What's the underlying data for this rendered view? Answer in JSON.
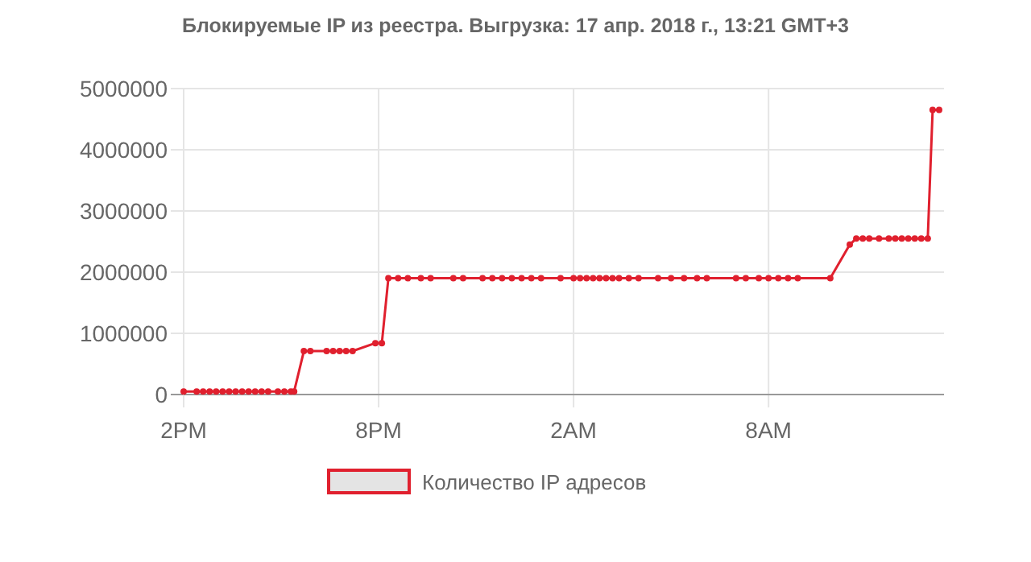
{
  "chart_data": {
    "type": "line",
    "title": "Блокируемые IP из реестра. Выгрузка: 17 апр. 2018 г., 13:21 GMT+3",
    "x": [
      "2018-04-16T14:00",
      "2018-04-16T14:24",
      "2018-04-16T14:36",
      "2018-04-16T14:48",
      "2018-04-16T15:00",
      "2018-04-16T15:12",
      "2018-04-16T15:24",
      "2018-04-16T15:36",
      "2018-04-16T15:48",
      "2018-04-16T16:00",
      "2018-04-16T16:12",
      "2018-04-16T16:24",
      "2018-04-16T16:36",
      "2018-04-16T16:54",
      "2018-04-16T17:06",
      "2018-04-16T17:18",
      "2018-04-16T17:24",
      "2018-04-16T17:42",
      "2018-04-16T17:54",
      "2018-04-16T18:24",
      "2018-04-16T18:36",
      "2018-04-16T18:48",
      "2018-04-16T19:00",
      "2018-04-16T19:12",
      "2018-04-16T19:54",
      "2018-04-16T20:06",
      "2018-04-16T20:18",
      "2018-04-16T20:36",
      "2018-04-16T20:54",
      "2018-04-16T21:18",
      "2018-04-16T21:36",
      "2018-04-16T22:18",
      "2018-04-16T22:36",
      "2018-04-16T23:12",
      "2018-04-16T23:30",
      "2018-04-16T23:48",
      "2018-04-17T00:06",
      "2018-04-17T00:24",
      "2018-04-17T00:42",
      "2018-04-17T01:00",
      "2018-04-17T01:36",
      "2018-04-17T02:00",
      "2018-04-17T02:12",
      "2018-04-17T02:24",
      "2018-04-17T02:36",
      "2018-04-17T02:48",
      "2018-04-17T03:00",
      "2018-04-17T03:12",
      "2018-04-17T03:24",
      "2018-04-17T03:42",
      "2018-04-17T04:00",
      "2018-04-17T04:36",
      "2018-04-17T05:00",
      "2018-04-17T05:24",
      "2018-04-17T05:48",
      "2018-04-17T06:06",
      "2018-04-17T07:00",
      "2018-04-17T07:18",
      "2018-04-17T07:42",
      "2018-04-17T08:00",
      "2018-04-17T08:18",
      "2018-04-17T08:36",
      "2018-04-17T08:54",
      "2018-04-17T09:54",
      "2018-04-17T10:30",
      "2018-04-17T10:42",
      "2018-04-17T10:54",
      "2018-04-17T11:06",
      "2018-04-17T11:24",
      "2018-04-17T11:42",
      "2018-04-17T11:54",
      "2018-04-17T12:06",
      "2018-04-17T12:18",
      "2018-04-17T12:30",
      "2018-04-17T12:42",
      "2018-04-17T12:54",
      "2018-04-17T13:03",
      "2018-04-17T13:15"
    ],
    "series": [
      {
        "name": "Количество IP адресов",
        "color": "#e0202e",
        "values": [
          50000,
          50000,
          50000,
          50000,
          50000,
          50000,
          50000,
          50000,
          50000,
          50000,
          50000,
          50000,
          50000,
          50000,
          50000,
          50000,
          50000,
          710000,
          710000,
          710000,
          710000,
          710000,
          710000,
          710000,
          840000,
          840000,
          1900000,
          1900000,
          1900000,
          1900000,
          1900000,
          1900000,
          1900000,
          1900000,
          1900000,
          1900000,
          1900000,
          1900000,
          1900000,
          1900000,
          1900000,
          1900000,
          1900000,
          1900000,
          1900000,
          1900000,
          1900000,
          1900000,
          1900000,
          1900000,
          1900000,
          1900000,
          1900000,
          1900000,
          1900000,
          1900000,
          1900000,
          1900000,
          1900000,
          1900000,
          1900000,
          1900000,
          1900000,
          1900000,
          2450000,
          2550000,
          2550000,
          2550000,
          2550000,
          2550000,
          2550000,
          2550000,
          2550000,
          2550000,
          2550000,
          2550000,
          4650000,
          4650000
        ]
      }
    ],
    "xlim": [
      "2018-04-16T14:00",
      "2018-04-17T13:24"
    ],
    "xticks": [
      {
        "value": "2018-04-16T14:00",
        "label": "2PM"
      },
      {
        "value": "2018-04-16T20:00",
        "label": "8PM"
      },
      {
        "value": "2018-04-17T02:00",
        "label": "2AM"
      },
      {
        "value": "2018-04-17T08:00",
        "label": "8AM"
      }
    ],
    "ylim": [
      0,
      5000000
    ],
    "yticks": [
      0,
      1000000,
      2000000,
      3000000,
      4000000,
      5000000
    ],
    "grid": true,
    "legend": "bottom",
    "marker": "circle",
    "line_style": "solid"
  }
}
